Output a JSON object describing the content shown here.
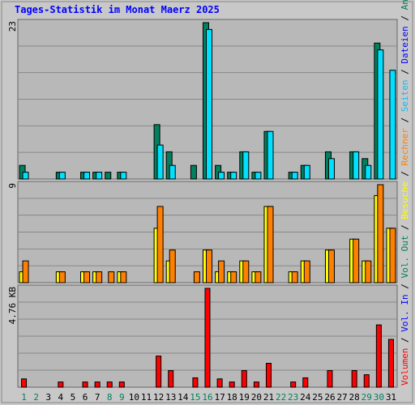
{
  "chart_data": {
    "type": "bar",
    "title": "Tages-Statistik im Monat Maerz 2025",
    "days": [
      "1",
      "2",
      "3",
      "4",
      "5",
      "6",
      "7",
      "8",
      "9",
      "10",
      "11",
      "12",
      "13",
      "14",
      "15",
      "16",
      "17",
      "18",
      "19",
      "20",
      "21",
      "22",
      "23",
      "24",
      "25",
      "26",
      "27",
      "28",
      "29",
      "30",
      "31"
    ],
    "weekend_days": [
      1,
      2,
      8,
      9,
      15,
      16,
      22,
      23,
      29,
      30
    ],
    "colors": {
      "title": "#0000ff",
      "frame_bg": "#c0c0c0",
      "plot_bg": "#b8b8b8",
      "grid": "#888888",
      "weekday_label": "#000000",
      "weekend_label": "#00805c"
    },
    "panels": [
      {
        "id": "hits",
        "ymax_label": "23",
        "ymax": 23,
        "series": [
          {
            "name": "Anfragen",
            "color": "#00805c",
            "values": [
              2,
              0,
              0,
              1,
              0,
              1,
              1,
              1,
              1,
              0,
              0,
              8,
              4,
              0,
              2,
              23,
              2,
              1,
              4,
              1,
              7,
              0,
              1,
              2,
              0,
              4,
              0,
              4,
              3,
              20,
              0
            ]
          },
          {
            "name": "Dateien",
            "color": "#00e0ff",
            "values": [
              1,
              0,
              0,
              1,
              0,
              1,
              1,
              0,
              1,
              0,
              0,
              5,
              2,
              0,
              0,
              22,
              1,
              1,
              4,
              1,
              7,
              0,
              1,
              2,
              0,
              3,
              0,
              4,
              2,
              19,
              16
            ]
          }
        ]
      },
      {
        "id": "visits",
        "ymax_label": "9",
        "ymax": 9,
        "series": [
          {
            "name": "Besuche",
            "color": "#ffff00",
            "values": [
              1,
              0,
              0,
              1,
              0,
              1,
              1,
              0,
              1,
              0,
              0,
              5,
              2,
              0,
              0,
              3,
              1,
              1,
              2,
              1,
              7,
              0,
              1,
              2,
              0,
              3,
              0,
              4,
              2,
              8,
              5
            ]
          },
          {
            "name": "Rechner",
            "color": "#ff8000",
            "values": [
              2,
              0,
              0,
              1,
              0,
              1,
              1,
              1,
              1,
              0,
              0,
              7,
              3,
              0,
              1,
              3,
              2,
              1,
              2,
              1,
              7,
              0,
              1,
              2,
              0,
              3,
              0,
              4,
              2,
              9,
              5
            ]
          }
        ]
      },
      {
        "id": "volume",
        "ymax_label": "4.76 KB",
        "ymax": 4.76,
        "series": [
          {
            "name": "Volumen",
            "color": "#ff0000",
            "values": [
              0.4,
              0,
              0,
              0.25,
              0,
              0.25,
              0.25,
              0.25,
              0.25,
              0,
              0,
              1.5,
              0.8,
              0,
              0.45,
              4.76,
              0.4,
              0.25,
              0.8,
              0.25,
              1.15,
              0,
              0.25,
              0.45,
              0,
              0.8,
              0,
              0.8,
              0.6,
              3.0,
              2.3
            ]
          }
        ]
      }
    ],
    "right_legend": [
      {
        "text": "Volumen",
        "color": "#ff0000"
      },
      {
        "text": " / ",
        "color": "#000000"
      },
      {
        "text": "Vol. In",
        "color": "#0000ff"
      },
      {
        "text": " / ",
        "color": "#000000"
      },
      {
        "text": "Vol. Out",
        "color": "#00805c"
      },
      {
        "text": " / ",
        "color": "#000000"
      },
      {
        "text": "Besuche",
        "color": "#ffff00"
      },
      {
        "text": " / ",
        "color": "#000000"
      },
      {
        "text": "Rechner",
        "color": "#ff8000"
      },
      {
        "text": " / ",
        "color": "#000000"
      },
      {
        "text": "Seiten",
        "color": "#00c0ff"
      },
      {
        "text": " / ",
        "color": "#000000"
      },
      {
        "text": "Dateien",
        "color": "#0000ff"
      },
      {
        "text": " / ",
        "color": "#000000"
      },
      {
        "text": "Anfragen",
        "color": "#00805c"
      }
    ]
  }
}
